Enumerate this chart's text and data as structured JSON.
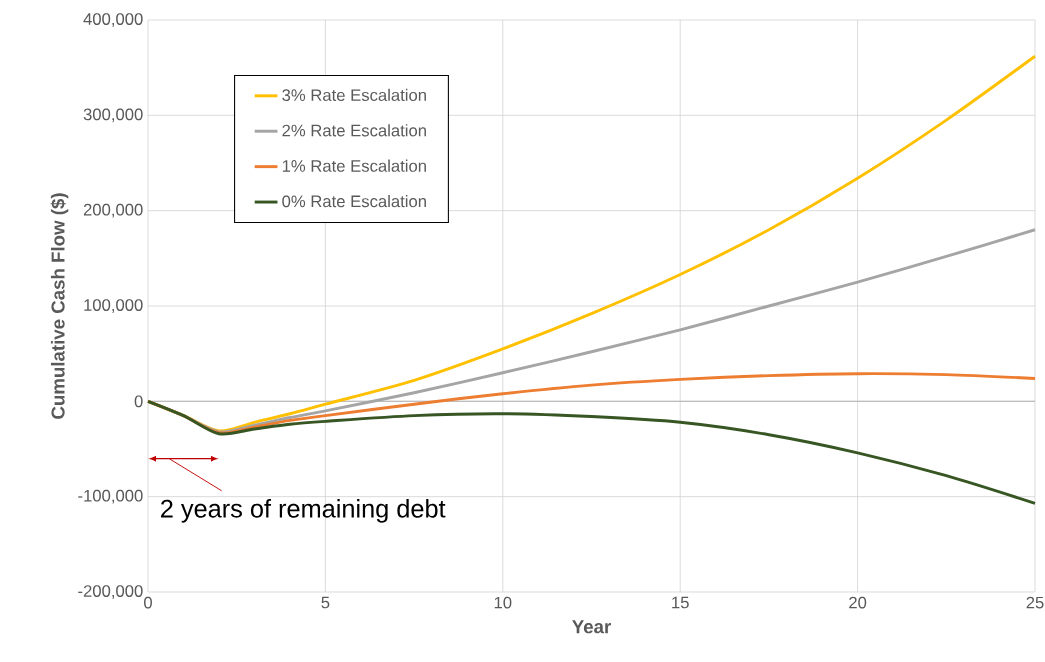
{
  "chart_data": {
    "type": "line",
    "xlabel": "Year",
    "ylabel": "Cumulative Cash Flow ($)",
    "x": [
      0,
      1,
      2,
      3,
      4,
      5,
      7.5,
      10,
      12.5,
      15,
      17.5,
      20,
      22.5,
      25
    ],
    "series": [
      {
        "name": "3% Rate Escalation",
        "color": "#ffc000",
        "values": [
          0,
          -15000,
          -31000,
          -22000,
          -13000,
          -3000,
          22000,
          55000,
          92000,
          133000,
          180000,
          234000,
          295000,
          362000
        ]
      },
      {
        "name": "2% Rate Escalation",
        "color": "#a5a5a5",
        "values": [
          0,
          -15000,
          -32000,
          -25000,
          -17000,
          -10000,
          9000,
          30000,
          52000,
          75000,
          100000,
          125000,
          152000,
          180000
        ]
      },
      {
        "name": "1% Rate Escalation",
        "color": "#ed7d31",
        "values": [
          0,
          -15000,
          -33000,
          -27000,
          -20000,
          -15000,
          -3000,
          8000,
          17000,
          23000,
          27000,
          29000,
          28000,
          24000
        ]
      },
      {
        "name": "0% Rate Escalation",
        "color": "#375623",
        "values": [
          0,
          -15000,
          -34000,
          -29000,
          -24000,
          -21000,
          -15000,
          -13000,
          -16000,
          -22000,
          -35000,
          -54000,
          -78000,
          -107000
        ]
      }
    ],
    "xlim": [
      0,
      25
    ],
    "xticks": [
      0,
      5,
      10,
      15,
      20,
      25
    ],
    "ylim": [
      -200000,
      400000
    ],
    "yticks": [
      {
        "value": -200000,
        "label": "-200,000"
      },
      {
        "value": -100000,
        "label": "-100,000"
      },
      {
        "value": 0,
        "label": "0"
      },
      {
        "value": 100000,
        "label": "100,000"
      },
      {
        "value": 200000,
        "label": "200,000"
      },
      {
        "value": 300000,
        "label": "300,000"
      },
      {
        "value": 400000,
        "label": "400,000"
      }
    ],
    "grid": true,
    "legend": "top left",
    "marker": "none",
    "line_style": "solid",
    "annotations": [
      "2 years of remaining debt"
    ]
  }
}
